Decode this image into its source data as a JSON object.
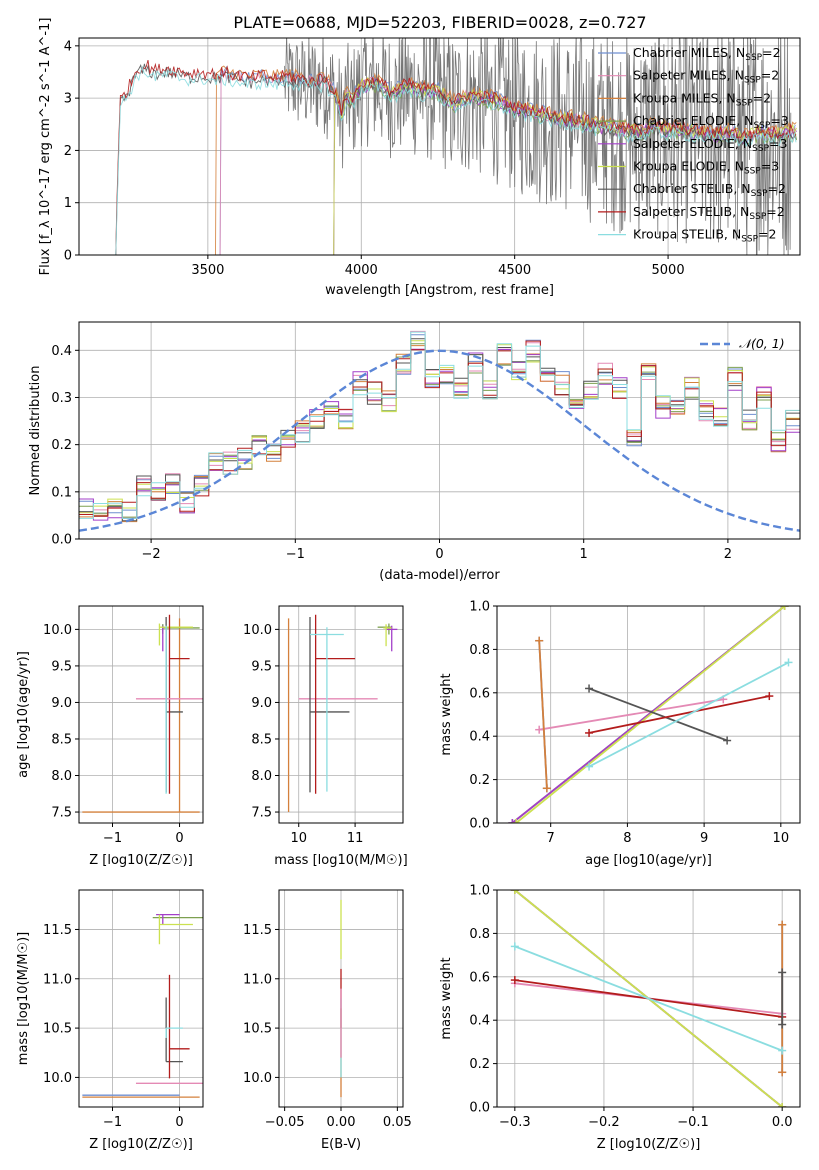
{
  "figure": {
    "title": "PLATE=0688, MJD=52203, FIBERID=0028, z=0.727"
  },
  "colors": {
    "Chabrier MILES": "#6f8fd0",
    "Salpeter MILES": "#e48ab5",
    "Kroupa MILES": "#d4803c",
    "Chabrier ELODIE": "#7da050",
    "Salpeter ELODIE": "#a33fc9",
    "Kroupa ELODIE": "#cce150",
    "Chabrier STELIB": "#555555",
    "Salpeter STELIB": "#b31c1c",
    "Kroupa STELIB": "#8bdde0",
    "grid": "#b0b0b0",
    "normal_curve": "#5b86d6"
  },
  "legend_spectrum": [
    {
      "lib": "Chabrier MILES",
      "label": "Chabrier MILES, N",
      "sub": "SSP",
      "suffix": "=2"
    },
    {
      "lib": "Salpeter MILES",
      "label": "Salpeter MILES, N",
      "sub": "SSP",
      "suffix": "=2"
    },
    {
      "lib": "Kroupa MILES",
      "label": "Kroupa MILES, N",
      "sub": "SSP",
      "suffix": "=2"
    },
    {
      "lib": "Chabrier ELODIE",
      "label": "Chabrier ELODIE, N",
      "sub": "SSP",
      "suffix": "=3"
    },
    {
      "lib": "Salpeter ELODIE",
      "label": "Salpeter ELODIE, N",
      "sub": "SSP",
      "suffix": "=3"
    },
    {
      "lib": "Kroupa ELODIE",
      "label": "Kroupa ELODIE, N",
      "sub": "SSP",
      "suffix": "=3"
    },
    {
      "lib": "Chabrier STELIB",
      "label": "Chabrier STELIB, N",
      "sub": "SSP",
      "suffix": "=2"
    },
    {
      "lib": "Salpeter STELIB",
      "label": "Salpeter STELIB, N",
      "sub": "SSP",
      "suffix": "=2"
    },
    {
      "lib": "Kroupa STELIB",
      "label": "Kroupa STELIB, N",
      "sub": "SSP",
      "suffix": "=2"
    }
  ],
  "legend_hist": {
    "label": "𝒩(0, 1)"
  },
  "chart_data": [
    {
      "id": "spectrum",
      "type": "line",
      "xlabel": "wavelength [Angstrom, rest frame]",
      "ylabel": "Flux [f_λ 10^-17 erg cm^-2 s^-1 A^-1]",
      "xlim": [
        3080,
        5430
      ],
      "ylim": [
        0,
        4.15
      ],
      "xticks": [
        3500,
        4000,
        4500,
        5000
      ],
      "yticks": [
        0,
        1,
        2,
        3,
        4
      ],
      "model_continuum": [
        [
          3200,
          0.0
        ],
        [
          3205,
          1.3
        ],
        [
          3215,
          2.9
        ],
        [
          3240,
          3.1
        ],
        [
          3270,
          3.5
        ],
        [
          3300,
          3.55
        ],
        [
          3330,
          3.45
        ],
        [
          3360,
          3.5
        ],
        [
          3400,
          3.45
        ],
        [
          3440,
          3.4
        ],
        [
          3480,
          3.42
        ],
        [
          3520,
          3.38
        ],
        [
          3560,
          3.4
        ],
        [
          3600,
          3.35
        ],
        [
          3640,
          3.3
        ],
        [
          3680,
          3.35
        ],
        [
          3720,
          3.3
        ],
        [
          3760,
          3.35
        ],
        [
          3800,
          3.3
        ],
        [
          3840,
          3.25
        ],
        [
          3880,
          3.3
        ],
        [
          3920,
          3.0
        ],
        [
          3935,
          2.6
        ],
        [
          3950,
          3.0
        ],
        [
          3970,
          2.9
        ],
        [
          4000,
          3.2
        ],
        [
          4050,
          3.25
        ],
        [
          4100,
          3.05
        ],
        [
          4150,
          3.2
        ],
        [
          4200,
          3.1
        ],
        [
          4250,
          3.1
        ],
        [
          4300,
          2.85
        ],
        [
          4350,
          3.0
        ],
        [
          4400,
          2.95
        ],
        [
          4450,
          2.9
        ],
        [
          4500,
          2.75
        ],
        [
          4550,
          2.7
        ],
        [
          4600,
          2.65
        ],
        [
          4650,
          2.55
        ],
        [
          4700,
          2.55
        ],
        [
          4750,
          2.45
        ],
        [
          4800,
          2.4
        ],
        [
          4850,
          2.35
        ],
        [
          4900,
          2.3
        ],
        [
          4950,
          2.4
        ],
        [
          5000,
          2.35
        ],
        [
          5050,
          2.35
        ],
        [
          5100,
          2.3
        ],
        [
          5150,
          2.25
        ],
        [
          5200,
          2.3
        ],
        [
          5250,
          2.2
        ],
        [
          5300,
          2.3
        ],
        [
          5350,
          2.25
        ],
        [
          5400,
          2.3
        ]
      ],
      "model_starts": {
        "Chabrier MILES": 3540,
        "Salpeter MILES": 3540,
        "Kroupa MILES": 3525,
        "Chabrier ELODIE": 3910,
        "Salpeter ELODIE": 3910,
        "Kroupa ELODIE": 3910,
        "Chabrier STELIB": 3200,
        "Salpeter STELIB": 3200,
        "Kroupa STELIB": 3200
      },
      "data_range": [
        3750,
        5400
      ]
    },
    {
      "id": "residual_hist",
      "type": "bar",
      "xlabel": "(data-model)/error",
      "ylabel": "Normed distribution",
      "xlim": [
        -2.5,
        2.5
      ],
      "ylim": [
        0,
        0.46
      ],
      "xticks": [
        -2,
        -1,
        0,
        1,
        2
      ],
      "yticks": [
        0.0,
        0.1,
        0.2,
        0.3,
        0.4
      ],
      "bin_edges_start": -2.5,
      "bin_width": 0.1,
      "base_heights": [
        0.06,
        0.06,
        0.07,
        0.06,
        0.11,
        0.1,
        0.12,
        0.08,
        0.11,
        0.16,
        0.16,
        0.17,
        0.2,
        0.18,
        0.21,
        0.23,
        0.25,
        0.27,
        0.25,
        0.33,
        0.31,
        0.29,
        0.37,
        0.42,
        0.34,
        0.35,
        0.32,
        0.37,
        0.32,
        0.39,
        0.36,
        0.4,
        0.34,
        0.33,
        0.3,
        0.31,
        0.35,
        0.32,
        0.22,
        0.35,
        0.28,
        0.27,
        0.32,
        0.27,
        0.26,
        0.34,
        0.25,
        0.3,
        0.21,
        0.25,
        0.22,
        0.2,
        0.21,
        0.21,
        0.16,
        0.18,
        0.16,
        0.18,
        0.21,
        0.14,
        0.12,
        0.1,
        0.11,
        0.08,
        0.08,
        0.06,
        0.07,
        0.09,
        0.07,
        0.09,
        0.07,
        0.06,
        0.05,
        0.05,
        0.04,
        0.04,
        0.03,
        0.03,
        0.05,
        0.04
      ],
      "normal_curve": {
        "label": "𝒩(0, 1)",
        "mean": 0,
        "sigma": 1
      }
    },
    {
      "id": "age_vs_Z",
      "type": "scatter",
      "xlabel": "Z [log10(Z/Z☉)]",
      "ylabel": "age [log10(age/yr)]",
      "xlim": [
        -1.5,
        0.35
      ],
      "ylim": [
        7.35,
        10.32
      ],
      "xticks": [
        -1,
        0
      ],
      "yticks": [
        7.5,
        8.0,
        8.5,
        9.0,
        9.5,
        10.0
      ],
      "points": [
        {
          "lib": "Chabrier MILES",
          "x": -0.25,
          "y": 10.02,
          "xerr": [
            0.0,
            0.0
          ],
          "yerr": [
            0.05,
            0.05
          ]
        },
        {
          "lib": "Kroupa MILES",
          "x": 0.0,
          "y": 7.5,
          "xerr": [
            1.45,
            0.3
          ],
          "yerr": [
            0.0,
            2.65
          ]
        },
        {
          "lib": "Chabrier ELODIE",
          "x": -0.25,
          "y": 10.02,
          "xerr": [
            0.0,
            0.55
          ],
          "yerr": [
            0.08,
            0.05
          ]
        },
        {
          "lib": "Salpeter ELODIE",
          "x": -0.25,
          "y": 10.0,
          "xerr": [
            0.0,
            0.0
          ],
          "yerr": [
            0.3,
            0.05
          ]
        },
        {
          "lib": "Kroupa ELODIE",
          "x": -0.3,
          "y": 10.03,
          "xerr": [
            0.0,
            0.5
          ],
          "yerr": [
            0.25,
            0.05
          ]
        },
        {
          "lib": "Chabrier STELIB",
          "x": -0.2,
          "y": 8.87,
          "xerr": [
            0.0,
            0.25
          ],
          "yerr": [
            1.1,
            1.3
          ]
        },
        {
          "lib": "Salpeter STELIB",
          "x": -0.15,
          "y": 9.6,
          "xerr": [
            0.0,
            0.3
          ],
          "yerr": [
            1.85,
            0.6
          ]
        },
        {
          "lib": "Salpeter MILES",
          "x": -0.2,
          "y": 9.05,
          "xerr": [
            0.45,
            0.55
          ],
          "yerr": [
            0.0,
            0.0
          ]
        },
        {
          "lib": "Kroupa STELIB",
          "x": -0.2,
          "y": 10.0,
          "xerr": [
            0.0,
            0.0
          ],
          "yerr": [
            2.25,
            0.05
          ]
        }
      ]
    },
    {
      "id": "age_vs_mass",
      "type": "scatter",
      "xlabel": "mass [log10(M/M☉)]",
      "ylabel": "",
      "xlim": [
        9.65,
        11.85
      ],
      "ylim": [
        7.35,
        10.32
      ],
      "xticks": [
        10,
        11
      ],
      "yticks": [
        7.5,
        8.0,
        8.5,
        9.0,
        9.5,
        10.0
      ],
      "points": [
        {
          "lib": "Kroupa MILES",
          "x": 9.82,
          "y": 7.5,
          "xerr": [
            0.0,
            0.0
          ],
          "yerr": [
            0.0,
            2.65
          ]
        },
        {
          "lib": "Salpeter MILES",
          "x": 10.5,
          "y": 9.05,
          "xerr": [
            0.5,
            0.9
          ],
          "yerr": [
            0.0,
            0.0
          ]
        },
        {
          "lib": "Chabrier STELIB",
          "x": 10.2,
          "y": 8.87,
          "xerr": [
            0.0,
            0.7
          ],
          "yerr": [
            1.1,
            1.3
          ]
        },
        {
          "lib": "Salpeter STELIB",
          "x": 10.3,
          "y": 9.6,
          "xerr": [
            0.0,
            0.7
          ],
          "yerr": [
            1.85,
            0.6
          ]
        },
        {
          "lib": "Kroupa STELIB",
          "x": 10.5,
          "y": 9.93,
          "xerr": [
            0.3,
            0.3
          ],
          "yerr": [
            2.15,
            0.1
          ]
        },
        {
          "lib": "Chabrier ELODIE",
          "x": 11.6,
          "y": 10.03,
          "xerr": [
            0.2,
            0.05
          ],
          "yerr": [
            0.1,
            0.05
          ]
        },
        {
          "lib": "Salpeter ELODIE",
          "x": 11.65,
          "y": 10.0,
          "xerr": [
            0.1,
            0.1
          ],
          "yerr": [
            0.3,
            0.05
          ]
        },
        {
          "lib": "Kroupa ELODIE",
          "x": 11.55,
          "y": 10.02,
          "xerr": [
            0.05,
            0.1
          ],
          "yerr": [
            0.25,
            0.05
          ]
        }
      ]
    },
    {
      "id": "weight_vs_age",
      "type": "line",
      "xlabel": "age [log10(age/yr)]",
      "ylabel": "mass weight",
      "xlim": [
        6.3,
        10.25
      ],
      "ylim": [
        0,
        1.0
      ],
      "xticks": [
        7,
        8,
        9,
        10
      ],
      "yticks": [
        0.0,
        0.2,
        0.4,
        0.6,
        0.8,
        1.0
      ],
      "series": [
        {
          "lib": "Chabrier MILES",
          "x": [
            6.85,
            6.95
          ],
          "y": [
            0.84,
            0.16
          ]
        },
        {
          "lib": "Salpeter MILES",
          "x": [
            6.85,
            9.25
          ],
          "y": [
            0.43,
            0.57
          ]
        },
        {
          "lib": "Kroupa MILES",
          "x": [
            6.85,
            6.95
          ],
          "y": [
            0.84,
            0.16
          ]
        },
        {
          "lib": "Chabrier ELODIE",
          "x": [
            6.5,
            10.05
          ],
          "y": [
            0.0,
            1.0
          ]
        },
        {
          "lib": "Salpeter ELODIE",
          "x": [
            6.5,
            10.05
          ],
          "y": [
            0.0,
            1.0
          ]
        },
        {
          "lib": "Kroupa ELODIE",
          "x": [
            6.55,
            10.05
          ],
          "y": [
            0.0,
            1.0
          ]
        },
        {
          "lib": "Chabrier STELIB",
          "x": [
            7.5,
            9.3
          ],
          "y": [
            0.62,
            0.38
          ]
        },
        {
          "lib": "Salpeter STELIB",
          "x": [
            7.5,
            9.85
          ],
          "y": [
            0.415,
            0.585
          ]
        },
        {
          "lib": "Kroupa STELIB",
          "x": [
            7.5,
            10.1
          ],
          "y": [
            0.26,
            0.74
          ]
        }
      ]
    },
    {
      "id": "mass_vs_Z",
      "type": "scatter",
      "xlabel": "Z [log10(Z/Z☉)]",
      "ylabel": "mass [log10(M/M☉)]",
      "xlim": [
        -1.5,
        0.35
      ],
      "ylim": [
        9.7,
        11.9
      ],
      "xticks": [
        -1,
        0
      ],
      "yticks": [
        10.0,
        10.5,
        11.0,
        11.5
      ],
      "points": [
        {
          "lib": "Chabrier MILES",
          "x": -1.45,
          "y": 9.82,
          "xerr": [
            0.0,
            1.45
          ],
          "yerr": [
            0.0,
            0.0
          ]
        },
        {
          "lib": "Kroupa MILES",
          "x": 0.0,
          "y": 9.8,
          "xerr": [
            1.45,
            0.3
          ],
          "yerr": [
            0.0,
            0.0
          ]
        },
        {
          "lib": "Salpeter MILES",
          "x": -0.2,
          "y": 9.94,
          "xerr": [
            0.45,
            0.55
          ],
          "yerr": [
            0.0,
            0.0
          ]
        },
        {
          "lib": "Chabrier ELODIE",
          "x": -0.2,
          "y": 11.62,
          "xerr": [
            0.2,
            0.55
          ],
          "yerr": [
            0.0,
            0.0
          ]
        },
        {
          "lib": "Salpeter ELODIE",
          "x": -0.25,
          "y": 11.65,
          "xerr": [
            0.1,
            0.25
          ],
          "yerr": [
            0.1,
            0.0
          ]
        },
        {
          "lib": "Kroupa ELODIE",
          "x": -0.3,
          "y": 11.55,
          "xerr": [
            0.0,
            0.5
          ],
          "yerr": [
            0.2,
            0.1
          ]
        },
        {
          "lib": "Chabrier STELIB",
          "x": -0.2,
          "y": 10.16,
          "xerr": [
            0.0,
            0.25
          ],
          "yerr": [
            0.0,
            0.65
          ]
        },
        {
          "lib": "Salpeter STELIB",
          "x": -0.15,
          "y": 10.29,
          "xerr": [
            0.0,
            0.3
          ],
          "yerr": [
            0.3,
            0.75
          ]
        },
        {
          "lib": "Kroupa STELIB",
          "x": -0.2,
          "y": 10.5,
          "xerr": [
            0.0,
            0.25
          ],
          "yerr": [
            0.1,
            0.0
          ]
        }
      ]
    },
    {
      "id": "mass_vs_EBV",
      "type": "scatter",
      "xlabel": "E(B-V)",
      "ylabel": "",
      "xlim": [
        -0.055,
        0.055
      ],
      "ylim": [
        9.7,
        11.9
      ],
      "xticks": [
        -0.05,
        0.0,
        0.05
      ],
      "yticks": [
        10.0,
        10.5,
        11.0,
        11.5
      ],
      "xtick_labels": [
        "−0.05",
        "0.00",
        "0.05"
      ],
      "points": [
        {
          "lib": "Kroupa MILES",
          "x": 0.0,
          "y": 10.3,
          "xerr": [
            0,
            0
          ],
          "yerr": [
            0.5,
            0.4
          ]
        },
        {
          "lib": "Kroupa ELODIE",
          "x": 0.0,
          "y": 11.5,
          "xerr": [
            0,
            0
          ],
          "yerr": [
            0.3,
            0.3
          ]
        },
        {
          "lib": "Salpeter STELIB",
          "x": 0.0,
          "y": 10.9,
          "xerr": [
            0,
            0
          ],
          "yerr": [
            0.4,
            0.2
          ]
        },
        {
          "lib": "Kroupa STELIB",
          "x": 0.0,
          "y": 10.4,
          "xerr": [
            0,
            0
          ],
          "yerr": [
            0.4,
            0.4
          ]
        },
        {
          "lib": "Salpeter MILES",
          "x": 0.0,
          "y": 10.6,
          "xerr": [
            0,
            0
          ],
          "yerr": [
            0.4,
            0.3
          ]
        }
      ]
    },
    {
      "id": "weight_vs_Z",
      "type": "line",
      "xlabel": "Z [log10(Z/Z☉)]",
      "ylabel": "mass weight",
      "xlim": [
        -0.32,
        0.02
      ],
      "ylim": [
        0,
        1.0
      ],
      "xticks": [
        -0.3,
        -0.2,
        -0.1,
        0.0
      ],
      "yticks": [
        0.0,
        0.2,
        0.4,
        0.6,
        0.8,
        1.0
      ],
      "series": [
        {
          "lib": "Chabrier MILES",
          "x": [
            0.0,
            0.0
          ],
          "y": [
            0.84,
            0.16
          ]
        },
        {
          "lib": "Kroupa MILES",
          "x": [
            0.0,
            0.0
          ],
          "y": [
            0.84,
            0.16
          ]
        },
        {
          "lib": "Chabrier ELODIE",
          "x": [
            -0.3,
            0.0
          ],
          "y": [
            1.0,
            0.0
          ]
        },
        {
          "lib": "Salpeter ELODIE",
          "x": [
            -0.3,
            0.0
          ],
          "y": [
            1.0,
            0.0
          ]
        },
        {
          "lib": "Kroupa ELODIE",
          "x": [
            -0.3,
            0.0
          ],
          "y": [
            1.0,
            0.0
          ]
        },
        {
          "lib": "Salpeter MILES",
          "x": [
            -0.3,
            0.0
          ],
          "y": [
            0.57,
            0.43
          ]
        },
        {
          "lib": "Salpeter STELIB",
          "x": [
            -0.3,
            0.0
          ],
          "y": [
            0.585,
            0.415
          ]
        },
        {
          "lib": "Kroupa STELIB",
          "x": [
            -0.3,
            0.0
          ],
          "y": [
            0.74,
            0.26
          ]
        },
        {
          "lib": "Chabrier STELIB",
          "x": [
            0.0,
            0.0
          ],
          "y": [
            0.62,
            0.38
          ]
        }
      ]
    }
  ]
}
